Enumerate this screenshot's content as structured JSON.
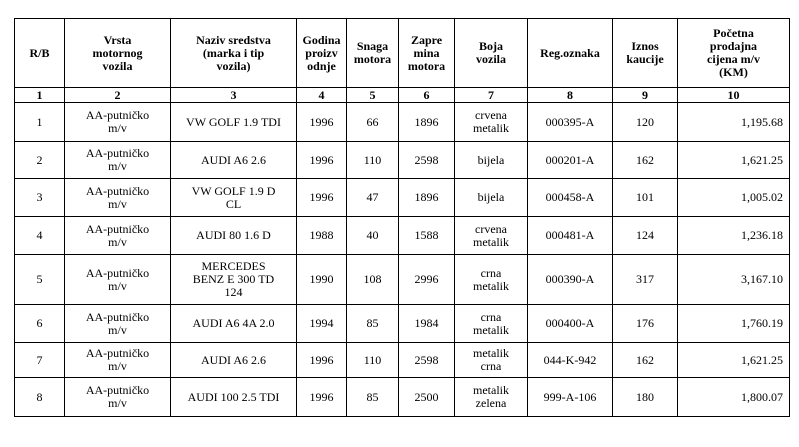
{
  "table": {
    "header": [
      "R/B",
      "Vrsta\nmotornog\nvozila",
      "Naziv sredstva\n(marka i tip\nvozila)",
      "Godina\nproizv\nodnje",
      "Snaga\nmotora",
      "Zapre\nmina\nmotora",
      "Boja\nvozila",
      "Reg.oznaka",
      "Iznos\nkaucije",
      "Početna\nprodajna\ncijena m/v\n(KM)"
    ],
    "column_numbers": [
      "1",
      "2",
      "3",
      "4",
      "5",
      "6",
      "7",
      "8",
      "9",
      "10"
    ],
    "rows": [
      [
        "1",
        "AA-putničko\nm/v",
        "VW GOLF 1.9 TDI",
        "1996",
        "66",
        "1896",
        "crvena\nmetalik",
        "000395-A",
        "120",
        "1,195.68"
      ],
      [
        "2",
        "AA-putničko\nm/v",
        "AUDI A6 2.6",
        "1996",
        "110",
        "2598",
        "bijela",
        "000201-A",
        "162",
        "1,621.25"
      ],
      [
        "3",
        "AA-putničko\nm/v",
        "VW GOLF 1.9 D\nCL",
        "1996",
        "47",
        "1896",
        "bijela",
        "000458-A",
        "101",
        "1,005.02"
      ],
      [
        "4",
        "AA-putničko\nm/v",
        "AUDI 80 1.6 D",
        "1988",
        "40",
        "1588",
        "crvena\nmetalik",
        "000481-A",
        "124",
        "1,236.18"
      ],
      [
        "5",
        "AA-putničko\nm/v",
        "MERCEDES\nBENZ E 300 TD\n124",
        "1990",
        "108",
        "2996",
        "crna\nmetalik",
        "000390-A",
        "317",
        "3,167.10"
      ],
      [
        "6",
        "AA-putničko\nm/v",
        "AUDI A6  4A 2.0",
        "1994",
        "85",
        "1984",
        "crna\nmetalik",
        "000400-A",
        "176",
        "1,760.19"
      ],
      [
        "7",
        "AA-putničko\nm/v",
        "AUDI A6 2.6",
        "1996",
        "110",
        "2598",
        "metalik\ncrna",
        "044-K-942",
        "162",
        "1,621.25"
      ],
      [
        "8",
        "AA-putničko\nm/v",
        "AUDI 100 2.5 TDI",
        "1996",
        "85",
        "2500",
        "metalik\nzelena",
        "999-A-106",
        "180",
        "1,800.07"
      ]
    ]
  }
}
